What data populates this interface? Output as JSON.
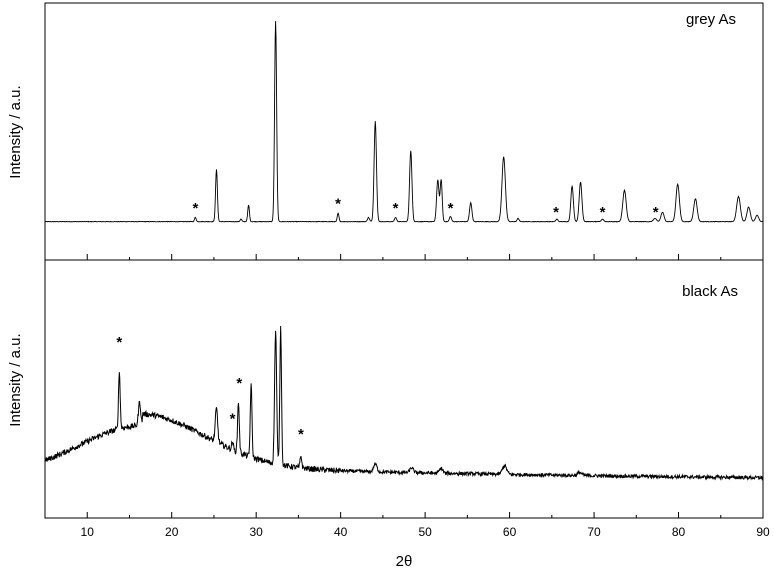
{
  "chart_data": {
    "type": "line",
    "xlabel": "2θ",
    "xlim": [
      5,
      90
    ],
    "x_ticks": [
      10,
      20,
      30,
      40,
      50,
      60,
      70,
      80,
      90
    ],
    "grid": false,
    "line_color": "#000000",
    "panels": [
      {
        "label": "grey As",
        "ylabel": "Intensity / a.u.",
        "ylim": [
          0,
          100
        ],
        "baseline": 4,
        "noise": 0.12,
        "hump": null,
        "peaks": [
          {
            "x": 22.8,
            "h": 2,
            "w": 0.1
          },
          {
            "x": 25.3,
            "h": 25,
            "w": 0.11
          },
          {
            "x": 28.2,
            "h": 1.2,
            "w": 0.1
          },
          {
            "x": 29.1,
            "h": 8,
            "w": 0.1
          },
          {
            "x": 32.3,
            "h": 96,
            "w": 0.12
          },
          {
            "x": 39.7,
            "h": 4,
            "w": 0.1
          },
          {
            "x": 43.3,
            "h": 2,
            "w": 0.12
          },
          {
            "x": 44.1,
            "h": 48,
            "w": 0.14
          },
          {
            "x": 46.5,
            "h": 2,
            "w": 0.12
          },
          {
            "x": 48.3,
            "h": 34,
            "w": 0.14
          },
          {
            "x": 51.5,
            "h": 20,
            "w": 0.14
          },
          {
            "x": 51.9,
            "h": 20,
            "w": 0.12
          },
          {
            "x": 53.0,
            "h": 2.5,
            "w": 0.12
          },
          {
            "x": 55.4,
            "h": 9,
            "w": 0.14
          },
          {
            "x": 59.3,
            "h": 31,
            "w": 0.2
          },
          {
            "x": 61.0,
            "h": 1.5,
            "w": 0.12
          },
          {
            "x": 65.6,
            "h": 1.2,
            "w": 0.12
          },
          {
            "x": 67.4,
            "h": 17,
            "w": 0.15
          },
          {
            "x": 68.4,
            "h": 19,
            "w": 0.16
          },
          {
            "x": 71.0,
            "h": 1.2,
            "w": 0.14
          },
          {
            "x": 73.6,
            "h": 15,
            "w": 0.2
          },
          {
            "x": 77.2,
            "h": 1.5,
            "w": 0.18
          },
          {
            "x": 78.1,
            "h": 4.5,
            "w": 0.18
          },
          {
            "x": 79.9,
            "h": 18,
            "w": 0.2
          },
          {
            "x": 82.0,
            "h": 11,
            "w": 0.2
          },
          {
            "x": 87.1,
            "h": 12,
            "w": 0.22
          },
          {
            "x": 88.3,
            "h": 7,
            "w": 0.2
          },
          {
            "x": 89.3,
            "h": 3,
            "w": 0.18
          }
        ],
        "markers": [
          {
            "x": 22.8,
            "y": 12
          },
          {
            "x": 39.7,
            "y": 14
          },
          {
            "x": 46.5,
            "y": 12
          },
          {
            "x": 53.0,
            "y": 12
          },
          {
            "x": 65.5,
            "y": 10
          },
          {
            "x": 71.0,
            "y": 10
          },
          {
            "x": 77.3,
            "y": 10
          }
        ]
      },
      {
        "label": "black As",
        "ylabel": "Intensity / a.u.",
        "ylim": [
          0,
          100
        ],
        "baseline": 6,
        "noise": 0.9,
        "hump": {
          "center": 16.5,
          "height": 26,
          "width": 7.5,
          "tail_level": 6,
          "tail_scale": 40
        },
        "peaks": [
          {
            "x": 13.8,
            "h": 29,
            "w": 0.1
          },
          {
            "x": 16.2,
            "h": 12,
            "w": 0.14
          },
          {
            "x": 25.3,
            "h": 17,
            "w": 0.14
          },
          {
            "x": 27.2,
            "h": 4,
            "w": 0.1
          },
          {
            "x": 27.9,
            "h": 26,
            "w": 0.1
          },
          {
            "x": 29.4,
            "h": 37,
            "w": 0.1
          },
          {
            "x": 32.3,
            "h": 68,
            "w": 0.12
          },
          {
            "x": 32.9,
            "h": 70,
            "w": 0.1
          },
          {
            "x": 35.3,
            "h": 6,
            "w": 0.1
          },
          {
            "x": 44.1,
            "h": 4,
            "w": 0.2
          },
          {
            "x": 48.4,
            "h": 2.5,
            "w": 0.2
          },
          {
            "x": 51.9,
            "h": 2.5,
            "w": 0.2
          },
          {
            "x": 59.4,
            "h": 4.5,
            "w": 0.25
          },
          {
            "x": 68.3,
            "h": 1.5,
            "w": 0.25
          }
        ],
        "markers": [
          {
            "x": 13.8,
            "y": 76
          },
          {
            "x": 27.2,
            "y": 37
          },
          {
            "x": 28.0,
            "y": 55
          },
          {
            "x": 35.3,
            "y": 29
          }
        ]
      }
    ]
  }
}
